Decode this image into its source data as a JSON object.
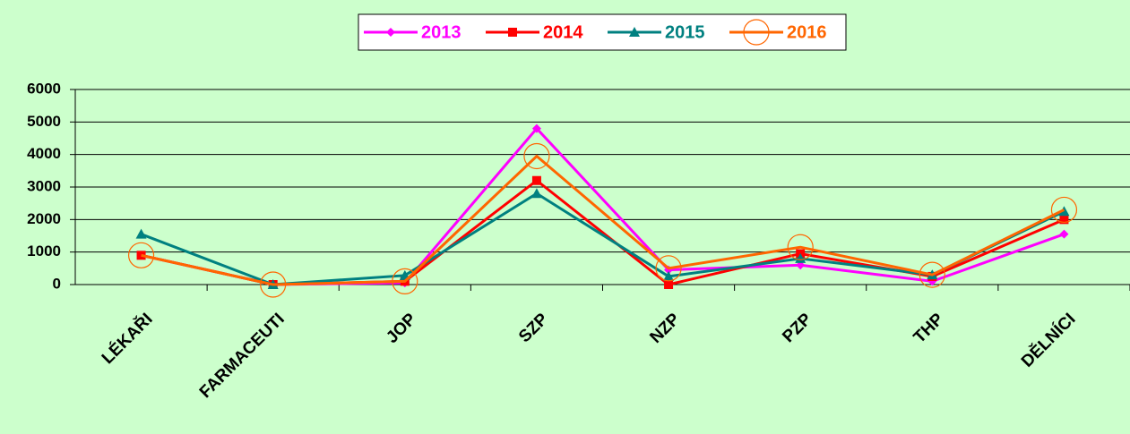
{
  "chart_data": {
    "type": "line",
    "categories": [
      "LÉKAŘI",
      "FARMACEUTI",
      "JOP",
      "SZP",
      "NZP",
      "PZP",
      "THP",
      "DĚLNÍCI"
    ],
    "series": [
      {
        "name": "2013",
        "color": "#ff00ff",
        "marker": "diamond",
        "values": [
          900,
          0,
          50,
          4800,
          450,
          600,
          100,
          1550
        ]
      },
      {
        "name": "2014",
        "color": "#ff0000",
        "marker": "square",
        "values": [
          900,
          0,
          100,
          3200,
          0,
          950,
          250,
          2000
        ]
      },
      {
        "name": "2015",
        "color": "#008080",
        "marker": "triangle",
        "values": [
          1550,
          0,
          280,
          2800,
          250,
          800,
          300,
          2250
        ]
      },
      {
        "name": "2016",
        "color": "#ff6600",
        "marker": "circle",
        "values": [
          900,
          0,
          100,
          3950,
          500,
          1150,
          300,
          2300
        ]
      }
    ],
    "ylim": [
      0,
      6000
    ],
    "yticks": [
      0,
      1000,
      2000,
      3000,
      4000,
      5000,
      6000
    ],
    "grid": true,
    "legend": "top"
  }
}
